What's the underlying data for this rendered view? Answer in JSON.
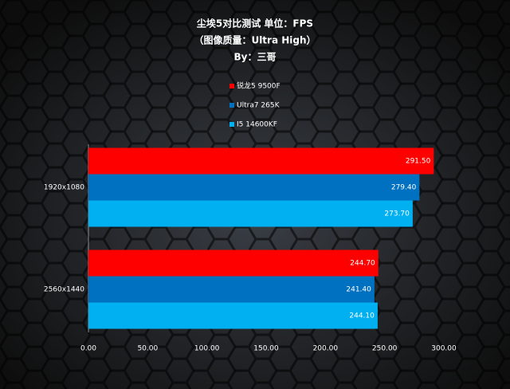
{
  "chart_data": {
    "type": "hbar",
    "title": "尘埃5对比测试 单位：FPS",
    "subtitle": "（图像质量：Ultra High）",
    "byline": "By：三哥",
    "categories": [
      "1920x1080",
      "2560x1440"
    ],
    "series": [
      {
        "name": "锐龙5 9500F",
        "color": "#ff0000",
        "values": [
          291.5,
          244.7
        ],
        "value_labels": [
          "291.50",
          "244.70"
        ]
      },
      {
        "name": "Ultra7 265K",
        "color": "#0070c0",
        "values": [
          279.4,
          241.4
        ],
        "value_labels": [
          "279.40",
          "241.40"
        ]
      },
      {
        "name": "I5 14600KF",
        "color": "#00b0f0",
        "values": [
          273.7,
          244.1
        ],
        "value_labels": [
          "273.70",
          "244.10"
        ]
      }
    ],
    "xlim": [
      0,
      300
    ],
    "xticks": [
      {
        "value": 0,
        "label": "0.00"
      },
      {
        "value": 50,
        "label": "50.00"
      },
      {
        "value": 100,
        "label": "100.00"
      },
      {
        "value": 150,
        "label": "150.00"
      },
      {
        "value": 200,
        "label": "200.00"
      },
      {
        "value": 250,
        "label": "250.00"
      },
      {
        "value": 300,
        "label": "300.00"
      }
    ],
    "legend": "top"
  }
}
